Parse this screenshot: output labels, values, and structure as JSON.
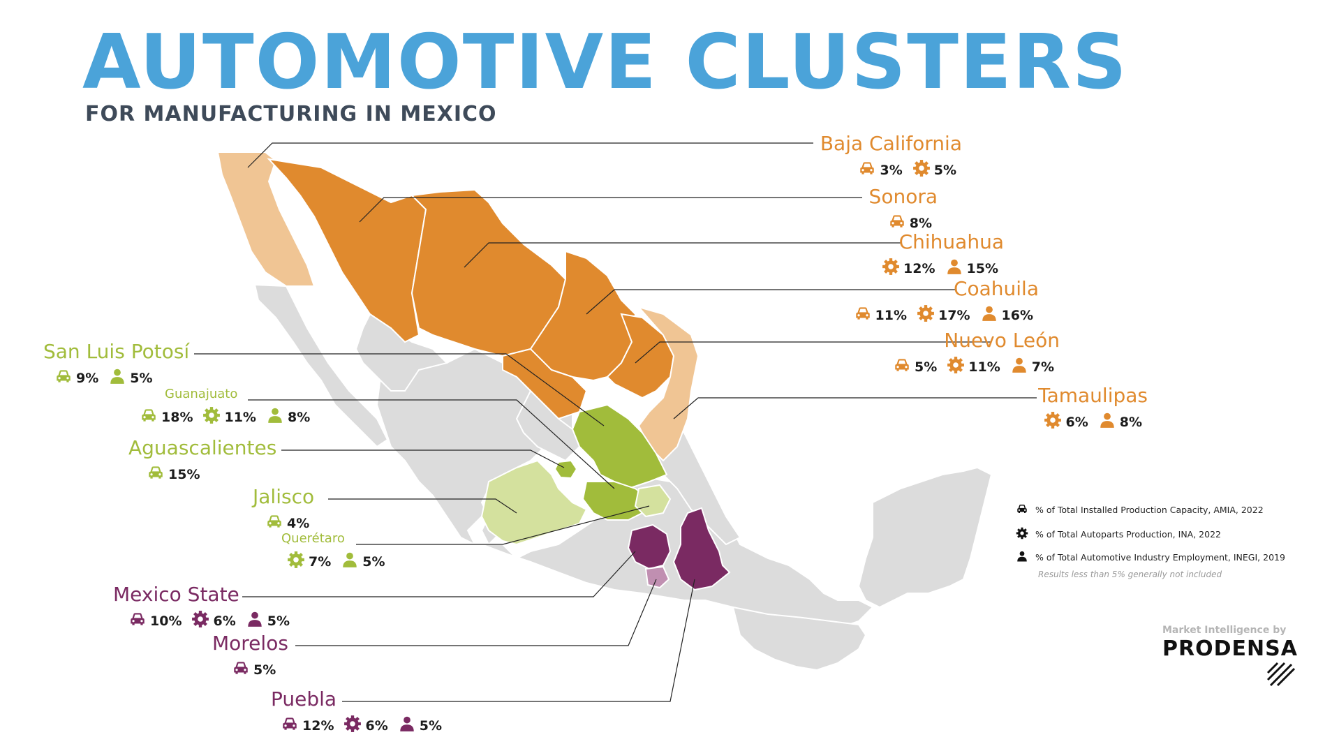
{
  "header": {
    "title": "AUTOMOTIVE CLUSTERS",
    "subtitle": "FOR MANUFACTURING IN MEXICO"
  },
  "colors": {
    "title": "#4ba3d9",
    "north_orange": "#e08a2e",
    "north_light": "#f0c594",
    "bajio_green": "#a1bc3b",
    "bajio_light": "#d4e19e",
    "center_purple": "#7a2a62",
    "center_light": "#c08fb1",
    "land_gray": "#dcdcdc"
  },
  "regions": [
    {
      "id": "baja",
      "name": "Baja California",
      "stats": [
        {
          "icon": "car-icon",
          "value": "3%"
        },
        {
          "icon": "gear-icon",
          "value": "5%"
        }
      ]
    },
    {
      "id": "sonora",
      "name": "Sonora",
      "stats": [
        {
          "icon": "car-icon",
          "value": "8%"
        }
      ]
    },
    {
      "id": "chihuahua",
      "name": "Chihuahua",
      "stats": [
        {
          "icon": "gear-icon",
          "value": "12%"
        },
        {
          "icon": "person-icon",
          "value": "15%"
        }
      ]
    },
    {
      "id": "coahuila",
      "name": "Coahuila",
      "stats": [
        {
          "icon": "car-icon",
          "value": "11%"
        },
        {
          "icon": "gear-icon",
          "value": "17%"
        },
        {
          "icon": "person-icon",
          "value": "16%"
        }
      ]
    },
    {
      "id": "nuevoleon",
      "name": "Nuevo León",
      "stats": [
        {
          "icon": "car-icon",
          "value": "5%"
        },
        {
          "icon": "gear-icon",
          "value": "11%"
        },
        {
          "icon": "person-icon",
          "value": "7%"
        }
      ]
    },
    {
      "id": "tamaulipas",
      "name": "Tamaulipas",
      "stats": [
        {
          "icon": "gear-icon",
          "value": "6%"
        },
        {
          "icon": "person-icon",
          "value": "8%"
        }
      ]
    },
    {
      "id": "slp",
      "name": "San Luis Potosí",
      "stats": [
        {
          "icon": "car-icon",
          "value": "9%"
        },
        {
          "icon": "person-icon",
          "value": "5%"
        }
      ]
    },
    {
      "id": "guanajuato",
      "name": "Guanajuato",
      "stats": [
        {
          "icon": "car-icon",
          "value": "18%"
        },
        {
          "icon": "gear-icon",
          "value": "11%"
        },
        {
          "icon": "person-icon",
          "value": "8%"
        }
      ]
    },
    {
      "id": "aguascalientes",
      "name": "Aguascalientes",
      "stats": [
        {
          "icon": "car-icon",
          "value": "15%"
        }
      ]
    },
    {
      "id": "jalisco",
      "name": "Jalisco",
      "stats": [
        {
          "icon": "car-icon",
          "value": "4%"
        }
      ]
    },
    {
      "id": "queretaro",
      "name": "Querétaro",
      "stats": [
        {
          "icon": "gear-icon",
          "value": "7%"
        },
        {
          "icon": "person-icon",
          "value": "5%"
        }
      ]
    },
    {
      "id": "mexicostate",
      "name": "Mexico State",
      "stats": [
        {
          "icon": "car-icon",
          "value": "10%"
        },
        {
          "icon": "gear-icon",
          "value": "6%"
        },
        {
          "icon": "person-icon",
          "value": "5%"
        }
      ]
    },
    {
      "id": "morelos",
      "name": "Morelos",
      "stats": [
        {
          "icon": "car-icon",
          "value": "5%"
        }
      ]
    },
    {
      "id": "puebla",
      "name": "Puebla",
      "stats": [
        {
          "icon": "car-icon",
          "value": "12%"
        },
        {
          "icon": "gear-icon",
          "value": "6%"
        },
        {
          "icon": "person-icon",
          "value": "5%"
        }
      ]
    }
  ],
  "legend": {
    "items": [
      {
        "icon": "car-icon",
        "label": "% of Total Installed Production Capacity, AMIA, 2022"
      },
      {
        "icon": "gear-icon",
        "label": "% of Total Autoparts Production, INA, 2022"
      },
      {
        "icon": "person-icon",
        "label": "% of Total Automotive Industry Employment, INEGI, 2019"
      }
    ],
    "note": "Results less than 5% generally not included"
  },
  "brand": {
    "tagline": "Market Intelligence by",
    "name": "PRODENSA"
  }
}
